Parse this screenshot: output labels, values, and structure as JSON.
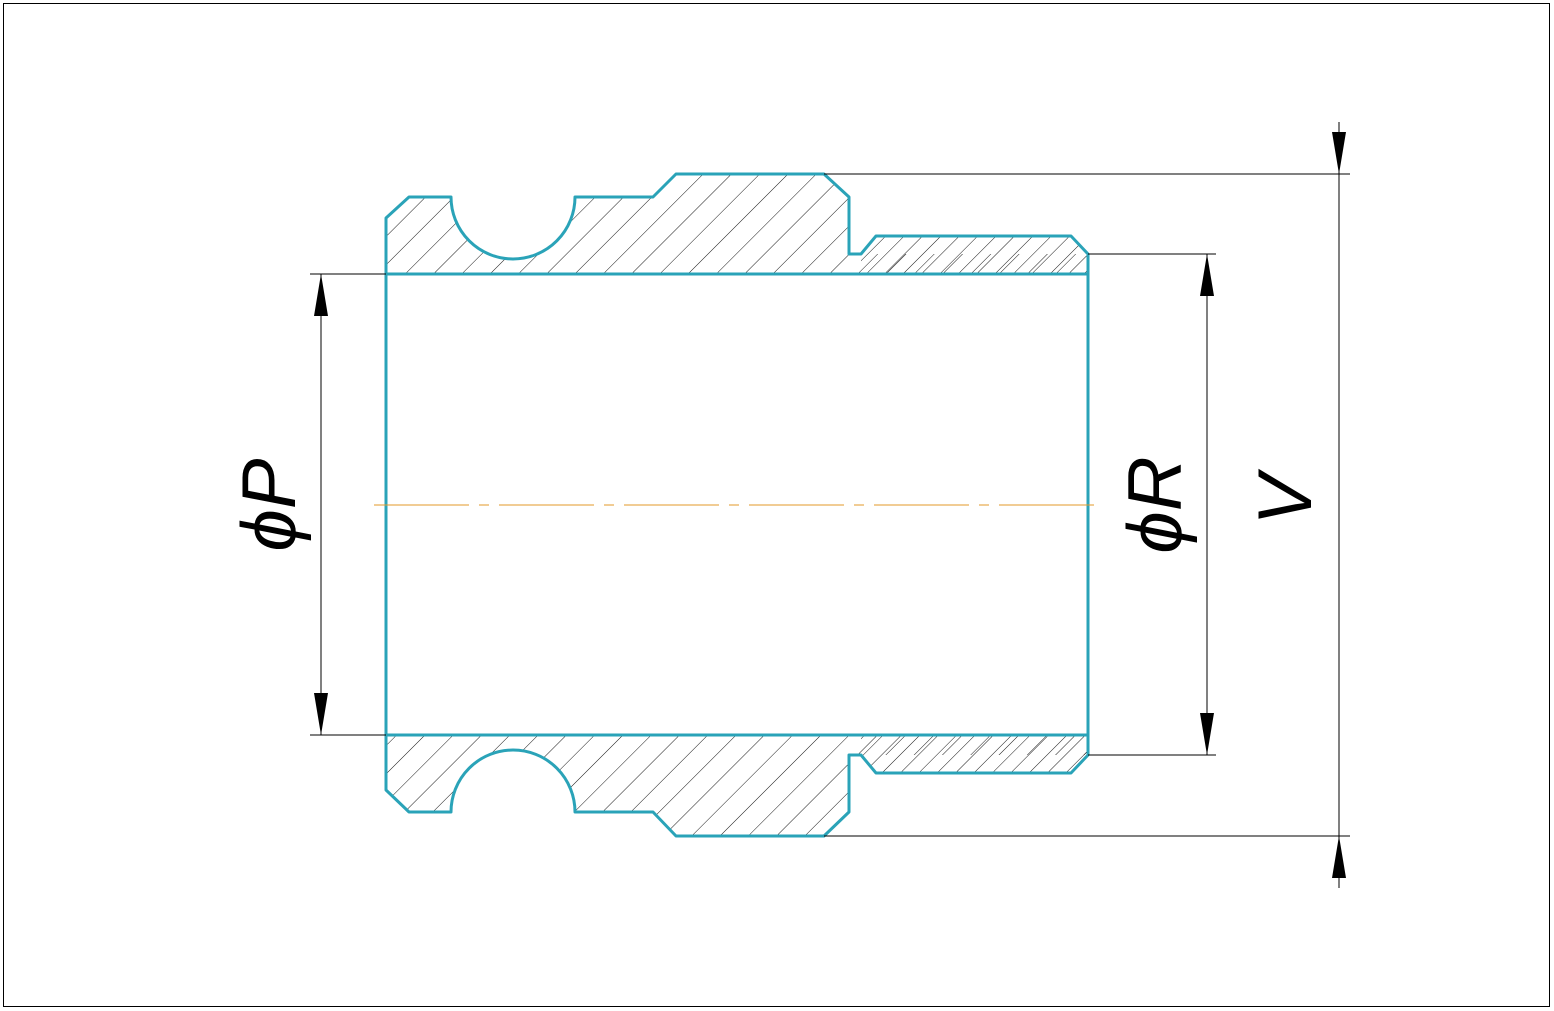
{
  "drawing": {
    "labels": {
      "inner_diameter": "ϕP",
      "thread_diameter": "ϕR",
      "overall_diameter": "V"
    },
    "colors": {
      "outline": "#2aa3b8",
      "centerline": "#e39a2a",
      "dimension": "#000000",
      "frame": "#000000"
    }
  }
}
